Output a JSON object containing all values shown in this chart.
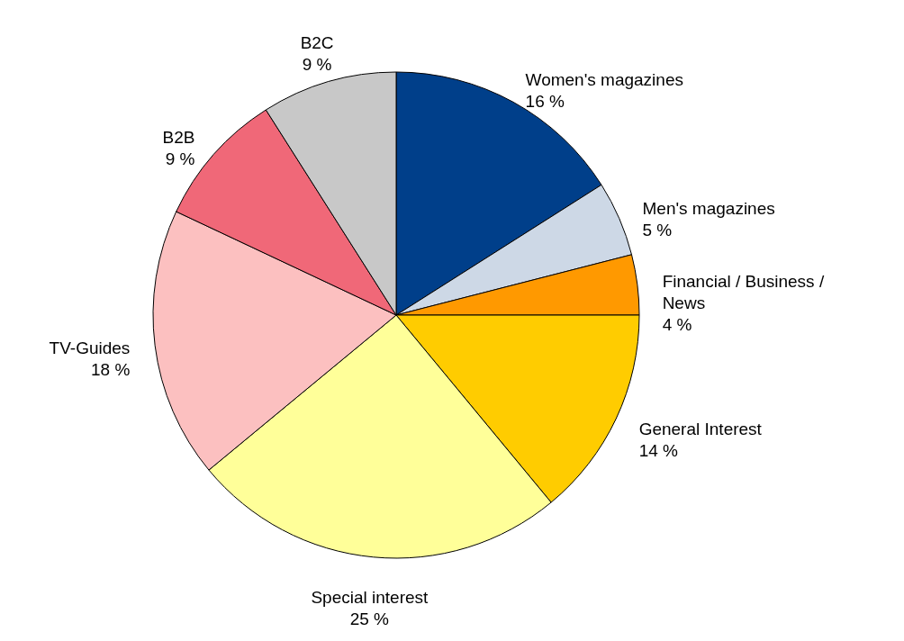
{
  "chart_data": {
    "type": "pie",
    "categories": [
      "Women's magazines",
      "Men's magazines",
      "Financial / Business / News",
      "General Interest",
      "Special interest",
      "TV-Guides",
      "B2B",
      "B2C"
    ],
    "values": [
      16,
      5,
      4,
      14,
      25,
      18,
      9,
      9
    ],
    "value_labels": [
      "16 %",
      "5 %",
      "4 %",
      "14 %",
      "25 %",
      "18 %",
      "9 %",
      "9 %"
    ],
    "colors": [
      "#003f8a",
      "#cdd8e6",
      "#ff9900",
      "#ffcc00",
      "#ffff99",
      "#fcc0c0",
      "#f06878",
      "#c8c8c8"
    ],
    "legend": false
  }
}
